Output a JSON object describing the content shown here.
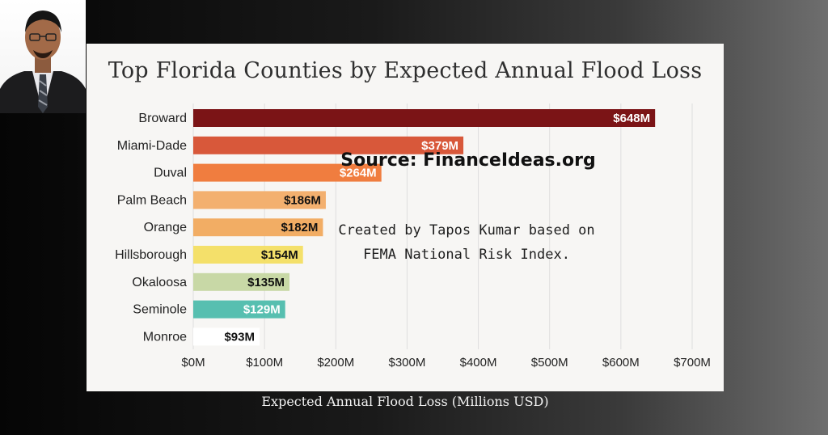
{
  "chart_data": {
    "type": "bar",
    "orientation": "horizontal",
    "title": "Top Florida Counties by Expected Annual Flood Loss",
    "xlabel": "Expected Annual Flood Loss (Millions USD)",
    "ylabel": "",
    "categories": [
      "Broward",
      "Miami-Dade",
      "Duval",
      "Palm Beach",
      "Orange",
      "Hillsborough",
      "Okaloosa",
      "Seminole",
      "Monroe"
    ],
    "values": [
      648,
      379,
      264,
      186,
      182,
      154,
      135,
      129,
      93
    ],
    "value_labels": [
      "$648M",
      "$379M",
      "$264M",
      "$186M",
      "$182M",
      "$154M",
      "$135M",
      "$129M",
      "$93M"
    ],
    "colors": [
      "#7b1416",
      "#d8583a",
      "#f07d3f",
      "#f3b06f",
      "#f2ad64",
      "#f4e06a",
      "#c8d8a6",
      "#57bfb0",
      "#ffffff"
    ],
    "xlim": [
      0,
      700
    ],
    "xticks": [
      0,
      100,
      200,
      300,
      400,
      500,
      600,
      700
    ],
    "xtick_labels": [
      "$0M",
      "$100M",
      "$200M",
      "$300M",
      "$400M",
      "$500M",
      "$600M",
      "$700M"
    ],
    "grid": "vertical",
    "legend": "none"
  },
  "annotations": {
    "source": "Source: FinanceIdeas.org",
    "credit_line1": "Created by Tapos Kumar based on",
    "credit_line2": "FEMA National Risk Index."
  }
}
